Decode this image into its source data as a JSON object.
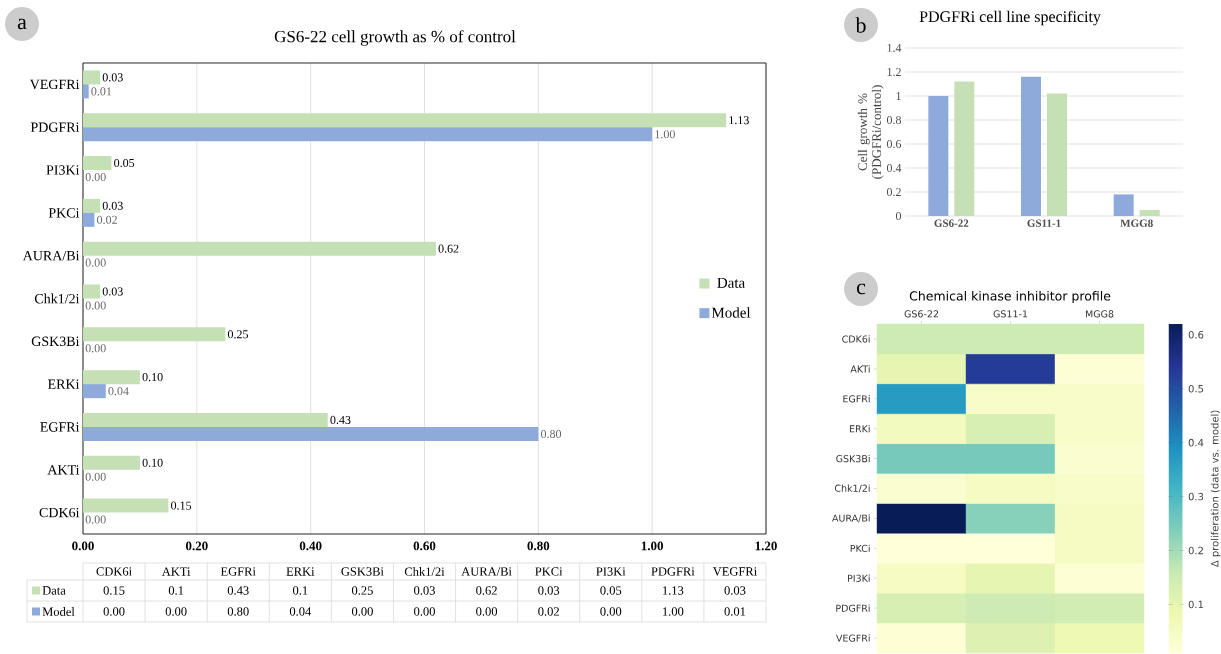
{
  "chart_data": [
    {
      "type": "bar",
      "orientation": "horizontal",
      "title": "GS6-22 cell growth as % of control",
      "annotations": [
        "a",
        "0.15",
        "0.1",
        "0.43",
        "0.1",
        "0.25",
        "0.03",
        "0.62",
        "0.03",
        "0.05",
        "1.13",
        "0.03",
        "0.00",
        "0.00",
        "0.80",
        "0.04",
        "0.00",
        "0.00",
        "0.00",
        "0.02",
        "0.00",
        "1.00",
        "0.01"
      ],
      "categories": [
        "VEGFRi",
        "PDGFRi",
        "PI3Ki",
        "PKCi",
        "AURA/Bi",
        "Chk1/2i",
        "GSK3Bi",
        "ERKi",
        "EGFRi",
        "AKTi",
        "CDK6i"
      ],
      "series": [
        {
          "name": "Data",
          "color": "#c5e0b4",
          "values": [
            0.03,
            1.13,
            0.05,
            0.03,
            0.62,
            0.03,
            0.25,
            0.1,
            0.43,
            0.1,
            0.15
          ],
          "value_labels": [
            "0.03",
            "1.13",
            "0.05",
            "0.03",
            "0.62",
            "0.03",
            "0.25",
            "0.10",
            "0.43",
            "0.10",
            "0.15"
          ]
        },
        {
          "name": "Model",
          "color": "#8eaadb",
          "values": [
            0.01,
            1.0,
            0.0,
            0.02,
            0.0,
            0.0,
            0.0,
            0.04,
            0.8,
            0.0,
            0.0
          ],
          "value_labels": [
            "0.01",
            "1.00",
            "0.00",
            "0.02",
            "0.00",
            "0.00",
            "0.00",
            "0.04",
            "0.80",
            "0.00",
            "0.00"
          ]
        }
      ],
      "xlim": [
        0,
        1.2
      ],
      "xticks": [
        {
          "value": 0,
          "label": "0.00"
        },
        {
          "value": 0.2,
          "label": "0.20"
        },
        {
          "value": 0.4,
          "label": "0.40"
        },
        {
          "value": 0.6,
          "label": "0.60"
        },
        {
          "value": 0.8,
          "label": "0.80"
        },
        {
          "value": 1.0,
          "label": "1.00"
        },
        {
          "value": 1.2,
          "label": "1.20"
        }
      ],
      "grid": "x",
      "legend": "right"
    },
    {
      "type": "bar",
      "title": "PDGFRi cell line specificity",
      "ylabel": "Cell growth % (PDGFRi/control)",
      "annotations": [
        "b"
      ],
      "categories": [
        "GS6-22",
        "GS11-1",
        "MGG8"
      ],
      "series": [
        {
          "color": "#8eaadb",
          "values": [
            1.0,
            1.16,
            0.18
          ]
        },
        {
          "color": "#c5e0b4",
          "values": [
            1.12,
            1.02,
            0.05
          ]
        }
      ],
      "ylim": [
        0,
        1.4
      ],
      "yticks": [
        0,
        0.2,
        0.4,
        0.6,
        0.8,
        1,
        1.2,
        1.4
      ],
      "grid": "y"
    },
    {
      "type": "heatmap",
      "title": "Chemical kinase inhibitor profile",
      "annotations": [
        "c"
      ],
      "clabel": "Δ proliferation (data vs. model)",
      "categories": [
        "GS6-22",
        "GS11-1",
        "MGG8"
      ],
      "y_categories": [
        "CDK6i",
        "AKTi",
        "EGFRi",
        "ERKi",
        "GSK3Bi",
        "Chk1/2i",
        "AURA/Bi",
        "PKCi",
        "PI3Ki",
        "PDGFRi",
        "VEGFRi"
      ],
      "cells": [
        [
          0.15,
          0.15,
          0.15
        ],
        [
          0.1,
          0.53,
          0.02
        ],
        [
          0.37,
          0.04,
          0.04
        ],
        [
          0.06,
          0.13,
          0.04
        ],
        [
          0.25,
          0.25,
          0.03
        ],
        [
          0.03,
          0.05,
          0.04
        ],
        [
          0.62,
          0.23,
          0.05
        ],
        [
          0.01,
          0.01,
          0.05
        ],
        [
          0.05,
          0.1,
          0.02
        ],
        [
          0.13,
          0.15,
          0.14
        ],
        [
          0.02,
          0.12,
          0.08
        ]
      ],
      "clim": [
        0.01,
        0.62
      ],
      "cticks": [
        0.1,
        0.2,
        0.3,
        0.4,
        0.5,
        0.6
      ]
    }
  ]
}
